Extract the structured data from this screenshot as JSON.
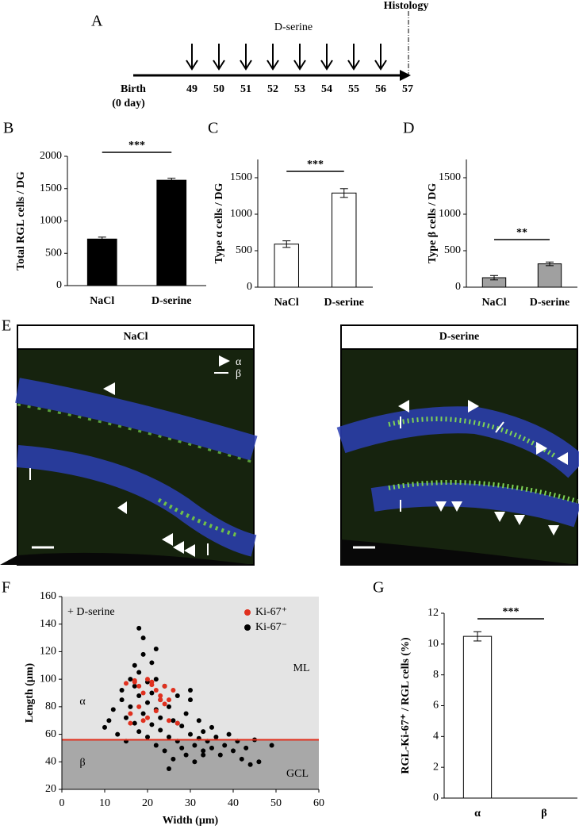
{
  "panel_labels": [
    "A",
    "B",
    "C",
    "D",
    "E",
    "F",
    "G"
  ],
  "timeline": {
    "label": "D-serine",
    "end_label": "Histology",
    "start_label": "Birth",
    "start_note": "(0 day)",
    "days": [
      49,
      50,
      51,
      52,
      53,
      54,
      55,
      56,
      57
    ],
    "injection_days": [
      49,
      50,
      51,
      52,
      53,
      54,
      55,
      56
    ]
  },
  "micrographs": {
    "titles": [
      "NaCl",
      "D-serine"
    ],
    "legend": [
      "α",
      "β"
    ]
  },
  "chart_data": [
    {
      "type": "bar",
      "ylabel": "Total RGL  cells / DG",
      "categories": [
        "NaCl",
        "D-serine"
      ],
      "values": [
        720,
        1630
      ],
      "errors": [
        30,
        30
      ],
      "color": "#000000",
      "ylim": [
        0,
        2000
      ],
      "yticks": [
        0,
        500,
        1000,
        1500,
        2000
      ],
      "significance": "***"
    },
    {
      "type": "bar",
      "ylabel": "Type α cells / DG",
      "categories": [
        "NaCl",
        "D-serine"
      ],
      "values": [
        590,
        1290
      ],
      "errors": [
        45,
        60
      ],
      "color": "#ffffff",
      "ylim": [
        0,
        1750
      ],
      "yticks": [
        0,
        500,
        1000,
        1500
      ],
      "significance": "***"
    },
    {
      "type": "bar",
      "ylabel": "Type β cells / DG",
      "categories": [
        "NaCl",
        "D-serine"
      ],
      "values": [
        130,
        320
      ],
      "errors": [
        30,
        25
      ],
      "color": "#a0a0a0",
      "ylim": [
        0,
        1750
      ],
      "yticks": [
        0,
        500,
        1000,
        1500
      ],
      "significance": "**"
    },
    {
      "type": "scatter",
      "xlabel": "Width (µm)",
      "ylabel": "Length (µm)",
      "xlim": [
        0,
        60
      ],
      "xticks": [
        0,
        10,
        20,
        30,
        40,
        50,
        60
      ],
      "ylim": [
        20,
        160
      ],
      "yticks": [
        20,
        40,
        60,
        80,
        100,
        120,
        140,
        160
      ],
      "threshold": 56,
      "threshold_color": "#e0301e",
      "background_colors": [
        "#e4e4e4",
        "#a8a8a8"
      ],
      "annotations": [
        "+ D-serine",
        "ML",
        "α",
        "GCL",
        "β"
      ],
      "series": [
        {
          "name": "Ki-67⁻",
          "color": "#000000",
          "x": [
            10,
            11,
            12,
            13,
            14,
            14,
            15,
            15,
            16,
            16,
            17,
            17,
            17,
            18,
            18,
            18,
            19,
            19,
            19,
            20,
            20,
            20,
            21,
            21,
            21,
            22,
            22,
            22,
            23,
            23,
            23,
            24,
            24,
            25,
            25,
            26,
            26,
            27,
            27,
            28,
            28,
            29,
            29,
            30,
            30,
            31,
            31,
            32,
            32,
            33,
            33,
            34,
            35,
            35,
            36,
            37,
            38,
            39,
            40,
            41,
            42,
            43,
            44,
            45,
            46,
            49,
            25,
            27,
            30,
            33,
            18,
            22
          ],
          "values": [
            65,
            70,
            78,
            60,
            85,
            92,
            72,
            55,
            100,
            80,
            68,
            95,
            110,
            62,
            88,
            105,
            75,
            118,
            130,
            58,
            83,
            98,
            67,
            90,
            112,
            52,
            78,
            100,
            63,
            85,
            72,
            48,
            95,
            58,
            80,
            42,
            70,
            55,
            88,
            50,
            66,
            45,
            75,
            60,
            92,
            52,
            40,
            57,
            70,
            48,
            62,
            55,
            50,
            65,
            58,
            45,
            52,
            60,
            48,
            55,
            42,
            50,
            38,
            56,
            40,
            52,
            35,
            68,
            85,
            45,
            137,
            122
          ]
        },
        {
          "name": "Ki-67⁺",
          "color": "#e0301e",
          "x": [
            15,
            16,
            17,
            18,
            19,
            20,
            21,
            22,
            23,
            24,
            25,
            26,
            16,
            18,
            20,
            22,
            24,
            17,
            19,
            21,
            23,
            25,
            27
          ],
          "values": [
            97,
            75,
            99,
            95,
            70,
            100,
            98,
            92,
            88,
            95,
            85,
            92,
            68,
            80,
            72,
            77,
            82,
            98,
            90,
            96,
            85,
            70,
            68
          ]
        }
      ]
    },
    {
      "type": "bar",
      "ylabel": "RGL-Ki-67⁺ / RGL cells (%)",
      "categories": [
        "α",
        "β"
      ],
      "values": [
        10.5,
        0
      ],
      "errors": [
        0.3,
        0
      ],
      "color": "#ffffff",
      "ylim": [
        0,
        12
      ],
      "yticks": [
        0,
        2,
        4,
        6,
        8,
        10,
        12
      ],
      "significance": "***"
    }
  ]
}
